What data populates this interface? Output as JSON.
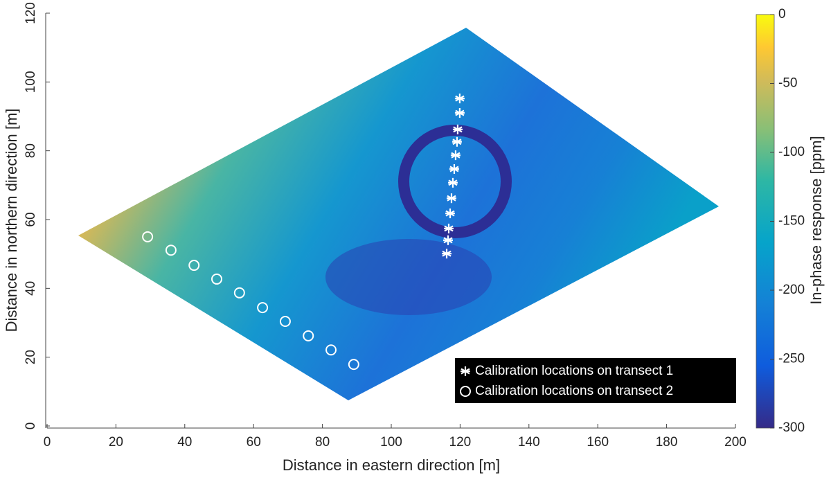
{
  "chart_data": {
    "type": "scatter",
    "xlabel": "Distance in eastern direction [m]",
    "ylabel": "Distance in northern direction [m]",
    "xlim": [
      0,
      200
    ],
    "xticks": [
      0,
      20,
      40,
      60,
      80,
      100,
      120,
      140,
      160,
      180,
      200
    ],
    "ylim": [
      0,
      120
    ],
    "yticks": [
      0,
      20,
      40,
      60,
      80,
      100,
      120
    ],
    "colorbar": {
      "label": "In-phase response [ppm]",
      "clim": [
        -300,
        0
      ],
      "ticks": [
        0,
        -50,
        -100,
        -150,
        -200,
        -250,
        -300
      ]
    },
    "legend": "lower right",
    "series": [
      {
        "name": "Calibration locations on transect 1",
        "marker": "asterisk",
        "color": "#ffffff",
        "x": [
          119.9,
          119.9,
          119.3,
          119.1,
          118.7,
          118.3,
          117.9,
          117.5,
          117.1,
          116.7,
          116.5,
          116.1
        ],
        "y": [
          95.2,
          91.0,
          86.2,
          82.6,
          78.7,
          74.7,
          70.7,
          66.2,
          61.8,
          57.4,
          54.0,
          50.1
        ]
      },
      {
        "name": "Calibration locations on transect 2",
        "marker": "circle",
        "color": "#ffffff",
        "x": [
          29.2,
          36.0,
          42.7,
          49.3,
          55.9,
          62.6,
          69.2,
          75.9,
          82.5,
          89.1
        ],
        "y": [
          55.0,
          51.1,
          46.7,
          42.7,
          38.7,
          34.4,
          30.4,
          26.2,
          22.1,
          17.9
        ]
      }
    ]
  }
}
